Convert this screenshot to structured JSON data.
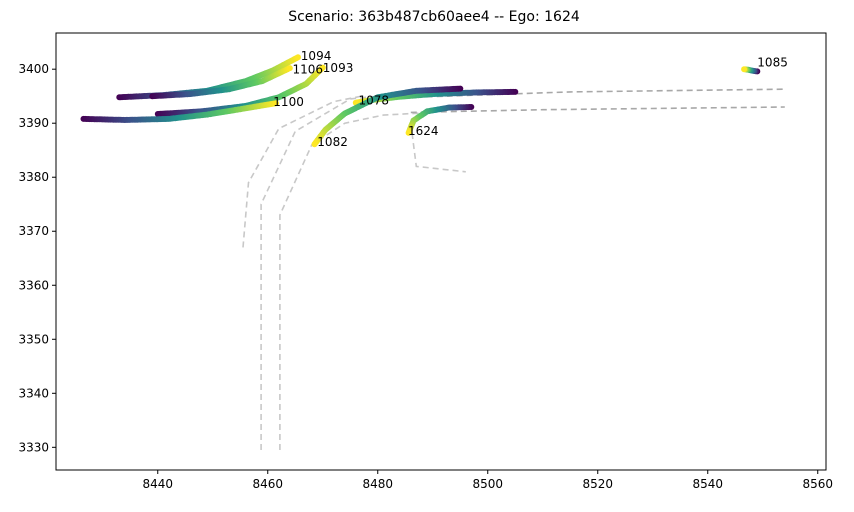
{
  "chart_data": {
    "type": "scatter",
    "title": "Scenario: 363b487cb60aee4 -- Ego: 1624",
    "xlabel": "",
    "ylabel": "",
    "xlim": [
      8421.5,
      8561.5
    ],
    "ylim": [
      3325.8,
      3406.7
    ],
    "x_ticks": [
      8440,
      8460,
      8480,
      8500,
      8520,
      8540,
      8560
    ],
    "y_ticks": [
      3330,
      3340,
      3350,
      3360,
      3370,
      3380,
      3390,
      3400
    ],
    "grid": false,
    "colormap": [
      "#440154",
      "#3b528b",
      "#21918c",
      "#5ec962",
      "#fde725"
    ],
    "lanes": [
      {
        "color": "#c8c8c8",
        "points": [
          [
            8455.5,
            3367
          ],
          [
            8456.5,
            3379
          ],
          [
            8462,
            3389
          ],
          [
            8472,
            3394
          ],
          [
            8477,
            3395
          ]
        ]
      },
      {
        "color": "#c8c8c8",
        "points": [
          [
            8458.8,
            3329.5
          ],
          [
            8458.8,
            3375
          ],
          [
            8465,
            3388.5
          ],
          [
            8475,
            3394.5
          ],
          [
            8480,
            3395
          ]
        ]
      },
      {
        "color": "#c8c8c8",
        "points": [
          [
            8462.2,
            3329.5
          ],
          [
            8462.2,
            3373
          ],
          [
            8468,
            3386
          ],
          [
            8474,
            3390
          ],
          [
            8481,
            3391.5
          ],
          [
            8490,
            3392
          ]
        ]
      },
      {
        "color": "#c8c8c8",
        "points": [
          [
            8486,
            3390
          ],
          [
            8487,
            3382
          ],
          [
            8496,
            3381
          ]
        ]
      },
      {
        "color": "#a8a8a8",
        "points": [
          [
            8478,
            3394.5
          ],
          [
            8515,
            3395.8
          ],
          [
            8554,
            3396.3
          ]
        ]
      },
      {
        "color": "#a8a8a8",
        "points": [
          [
            8486,
            3392
          ],
          [
            8510,
            3392.5
          ],
          [
            8554,
            3393.0
          ]
        ]
      }
    ],
    "agents": [
      {
        "id": "1094",
        "label_at": [
          8466,
          3401.7
        ],
        "trajectory": [
          [
            8433,
            3394.8
          ],
          [
            8441,
            3395.2
          ],
          [
            8449,
            3396
          ],
          [
            8456,
            3397.8
          ],
          [
            8461,
            3399.8
          ],
          [
            8465.5,
            3402.2
          ]
        ]
      },
      {
        "id": "1106",
        "label_at": [
          8464.5,
          3399.2
        ],
        "trajectory": [
          [
            8439,
            3395.0
          ],
          [
            8446,
            3395.4
          ],
          [
            8453,
            3396.3
          ],
          [
            8459,
            3397.8
          ],
          [
            8464,
            3400.2
          ]
        ]
      },
      {
        "id": "1093",
        "label_at": [
          8470,
          3399.5
        ],
        "trajectory": [
          [
            8440,
            3391.7
          ],
          [
            8448,
            3392.2
          ],
          [
            8456,
            3393.2
          ],
          [
            8462,
            3394.8
          ],
          [
            8467,
            3397.3
          ],
          [
            8470,
            3400.3
          ]
        ]
      },
      {
        "id": "1100",
        "label_at": [
          8461,
          3393.2
        ],
        "trajectory": [
          [
            8426.5,
            3390.8
          ],
          [
            8434,
            3390.6
          ],
          [
            8442,
            3390.8
          ],
          [
            8449,
            3391.6
          ],
          [
            8455,
            3392.6
          ],
          [
            8461.5,
            3393.7
          ]
        ]
      },
      {
        "id": "1078",
        "label_at": [
          8476.5,
          3393.5
        ],
        "trajectory": [
          [
            8505,
            3395.8
          ],
          [
            8498,
            3395.7
          ],
          [
            8490,
            3395.4
          ],
          [
            8484,
            3394.9
          ],
          [
            8479,
            3394.3
          ],
          [
            8476,
            3393.8
          ]
        ]
      },
      {
        "id": "1082",
        "label_at": [
          8469,
          3385.8
        ],
        "trajectory": [
          [
            8495,
            3396.4
          ],
          [
            8487,
            3396.0
          ],
          [
            8480,
            3394.8
          ],
          [
            8474,
            3391.8
          ],
          [
            8470.5,
            3388.8
          ],
          [
            8468.5,
            3386.1
          ]
        ]
      },
      {
        "id": "1624",
        "label_at": [
          8485.5,
          3387.8
        ],
        "trajectory": [
          [
            8497,
            3393.0
          ],
          [
            8493,
            3392.9
          ],
          [
            8489,
            3392.2
          ],
          [
            8486.5,
            3390.5
          ],
          [
            8485.6,
            3388.2
          ]
        ]
      },
      {
        "id": "1085",
        "label_at": [
          8549,
          3400.5
        ],
        "trajectory": [
          [
            8549,
            3399.6
          ],
          [
            8548.2,
            3399.7
          ],
          [
            8547.4,
            3399.9
          ],
          [
            8546.6,
            3400.0
          ]
        ]
      }
    ]
  }
}
